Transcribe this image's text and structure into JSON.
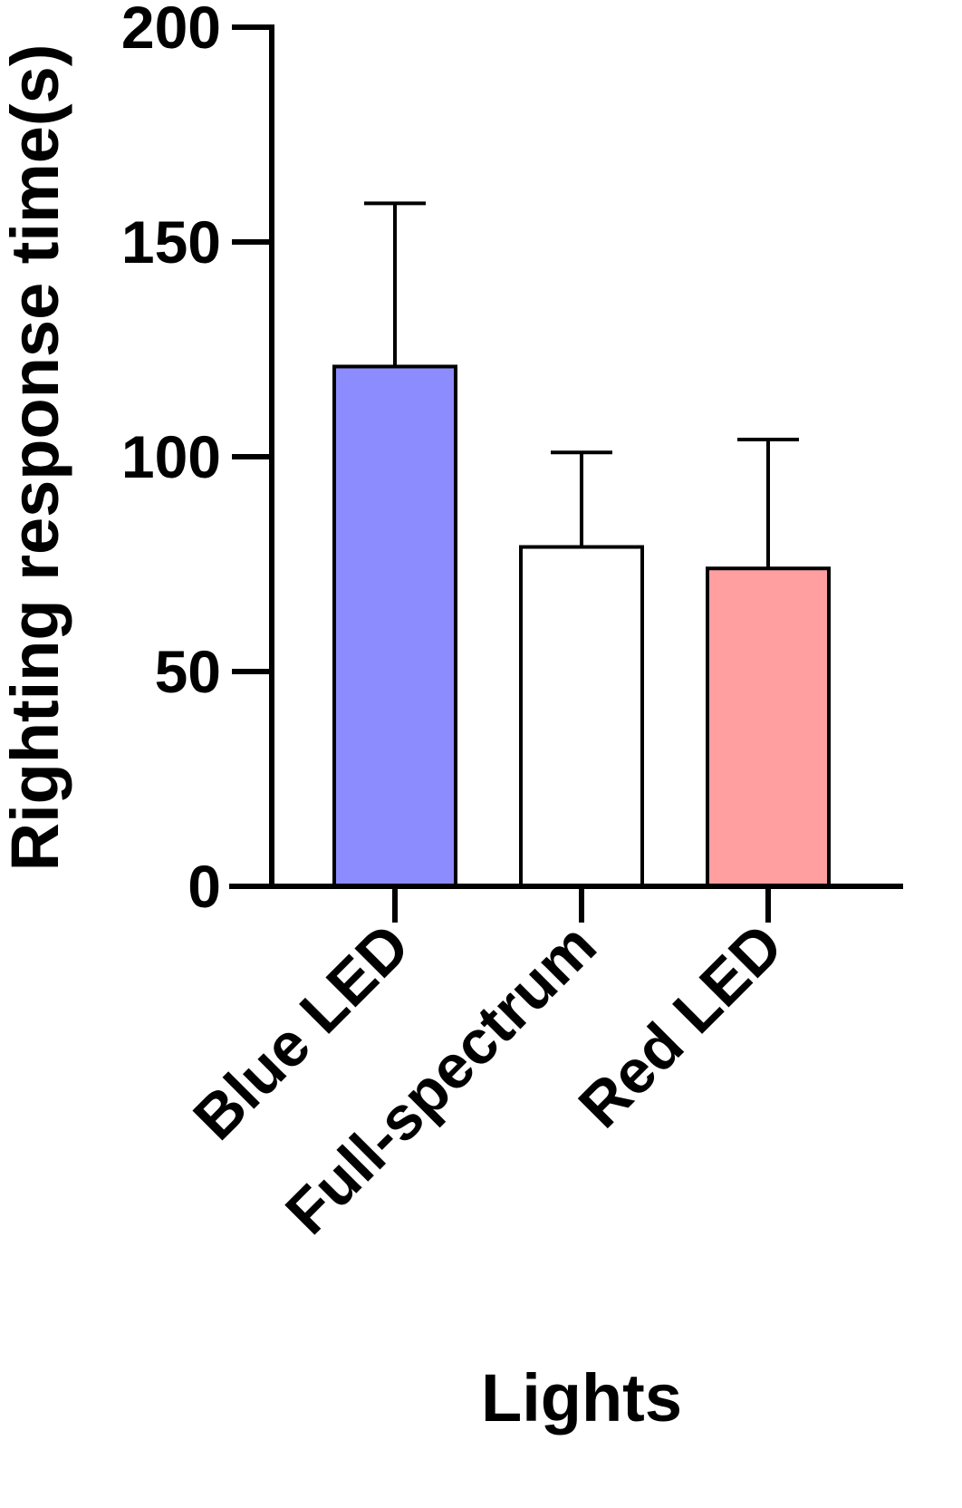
{
  "chart_data": {
    "type": "bar",
    "categories": [
      "Blue LED",
      "Full-spectrum",
      "Red LED"
    ],
    "values": [
      121,
      79,
      74
    ],
    "error_upper": [
      159,
      101,
      104
    ],
    "colors": [
      "#8c8cff",
      "#ffffff",
      "#ff9f9f"
    ],
    "xlabel": "Lights",
    "ylabel": "Righting response time(s)",
    "ylim": [
      0,
      200
    ],
    "yticks": [
      0,
      50,
      100,
      150,
      200
    ],
    "grid": false,
    "legend": "none"
  }
}
